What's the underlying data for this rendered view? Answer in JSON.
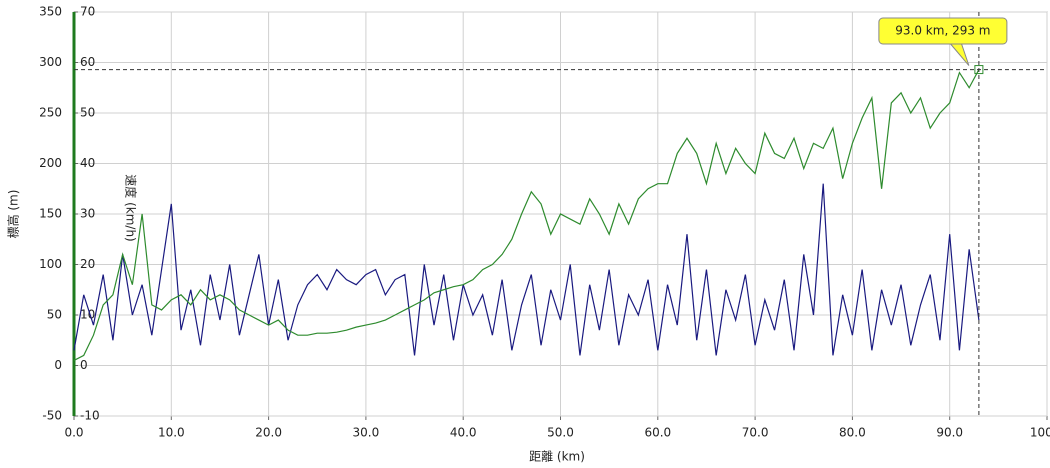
{
  "chart_data": {
    "type": "line",
    "x_label": "距離 (km)",
    "y_label": "標高 (m)",
    "y2_label": "速度 (km/h)",
    "x": [
      0,
      1,
      2,
      3,
      4,
      5,
      6,
      7,
      8,
      9,
      10,
      11,
      12,
      13,
      14,
      15,
      16,
      17,
      18,
      19,
      20,
      21,
      22,
      23,
      24,
      25,
      26,
      27,
      28,
      29,
      30,
      31,
      32,
      33,
      34,
      35,
      36,
      37,
      38,
      39,
      40,
      41,
      42,
      43,
      44,
      45,
      46,
      47,
      48,
      49,
      50,
      51,
      52,
      53,
      54,
      55,
      56,
      57,
      58,
      59,
      60,
      61,
      62,
      63,
      64,
      65,
      66,
      67,
      68,
      69,
      70,
      71,
      72,
      73,
      74,
      75,
      76,
      77,
      78,
      79,
      80,
      81,
      82,
      83,
      84,
      85,
      86,
      87,
      88,
      89,
      90,
      91,
      92,
      93
    ],
    "series": [
      {
        "name": "標高",
        "color": "#2e8b2e",
        "axis": "y",
        "values": [
          5,
          10,
          30,
          60,
          70,
          110,
          80,
          150,
          60,
          55,
          65,
          70,
          60,
          75,
          65,
          70,
          65,
          55,
          50,
          45,
          40,
          45,
          35,
          30,
          30,
          32,
          32,
          33,
          35,
          38,
          40,
          42,
          45,
          50,
          55,
          60,
          65,
          72,
          75,
          78,
          80,
          85,
          95,
          100,
          110,
          125,
          150,
          172,
          160,
          130,
          150,
          145,
          140,
          165,
          150,
          130,
          160,
          140,
          165,
          175,
          180,
          180,
          210,
          225,
          210,
          180,
          220,
          190,
          215,
          200,
          190,
          230,
          210,
          205,
          225,
          195,
          220,
          215,
          235,
          185,
          220,
          245,
          265,
          175,
          260,
          270,
          250,
          265,
          235,
          250,
          260,
          290,
          275,
          293
        ]
      },
      {
        "name": "速度",
        "color": "#1a1a80",
        "axis": "y2",
        "values": [
          3,
          14,
          8,
          18,
          5,
          22,
          10,
          16,
          6,
          19,
          32,
          7,
          15,
          4,
          18,
          9,
          20,
          6,
          14,
          22,
          8,
          17,
          5,
          12,
          16,
          18,
          15,
          19,
          17,
          16,
          18,
          19,
          14,
          17,
          18,
          2,
          20,
          8,
          18,
          5,
          16,
          10,
          14,
          6,
          17,
          3,
          12,
          18,
          4,
          15,
          9,
          20,
          2,
          16,
          7,
          19,
          4,
          14,
          10,
          17,
          3,
          16,
          8,
          26,
          5,
          19,
          2,
          15,
          9,
          18,
          4,
          13,
          7,
          17,
          3,
          22,
          10,
          36,
          2,
          14,
          6,
          19,
          3,
          15,
          8,
          16,
          4,
          12,
          18,
          5,
          26,
          3,
          23,
          9
        ]
      }
    ],
    "xlim": [
      0,
      100
    ],
    "xticks": [
      {
        "value": 0,
        "label": "0.0"
      },
      {
        "value": 10,
        "label": "10.0"
      },
      {
        "value": 20,
        "label": "20.0"
      },
      {
        "value": 30,
        "label": "30.0"
      },
      {
        "value": 40,
        "label": "40.0"
      },
      {
        "value": 50,
        "label": "50.0"
      },
      {
        "value": 60,
        "label": "60.0"
      },
      {
        "value": 70,
        "label": "70.0"
      },
      {
        "value": 80,
        "label": "80.0"
      },
      {
        "value": 90,
        "label": "90.0"
      },
      {
        "value": 100,
        "label": "100.0"
      }
    ],
    "ylim": [
      -50,
      350
    ],
    "yticks": [
      -50,
      0,
      50,
      100,
      150,
      200,
      250,
      300,
      350
    ],
    "y2lim": [
      -10,
      70
    ],
    "y2ticks": [
      -10,
      0,
      10,
      20,
      30,
      40,
      50,
      60,
      70
    ],
    "grid": true,
    "crosshair": {
      "x": 93,
      "y": 293,
      "label": "93.0 km, 293 m"
    }
  }
}
